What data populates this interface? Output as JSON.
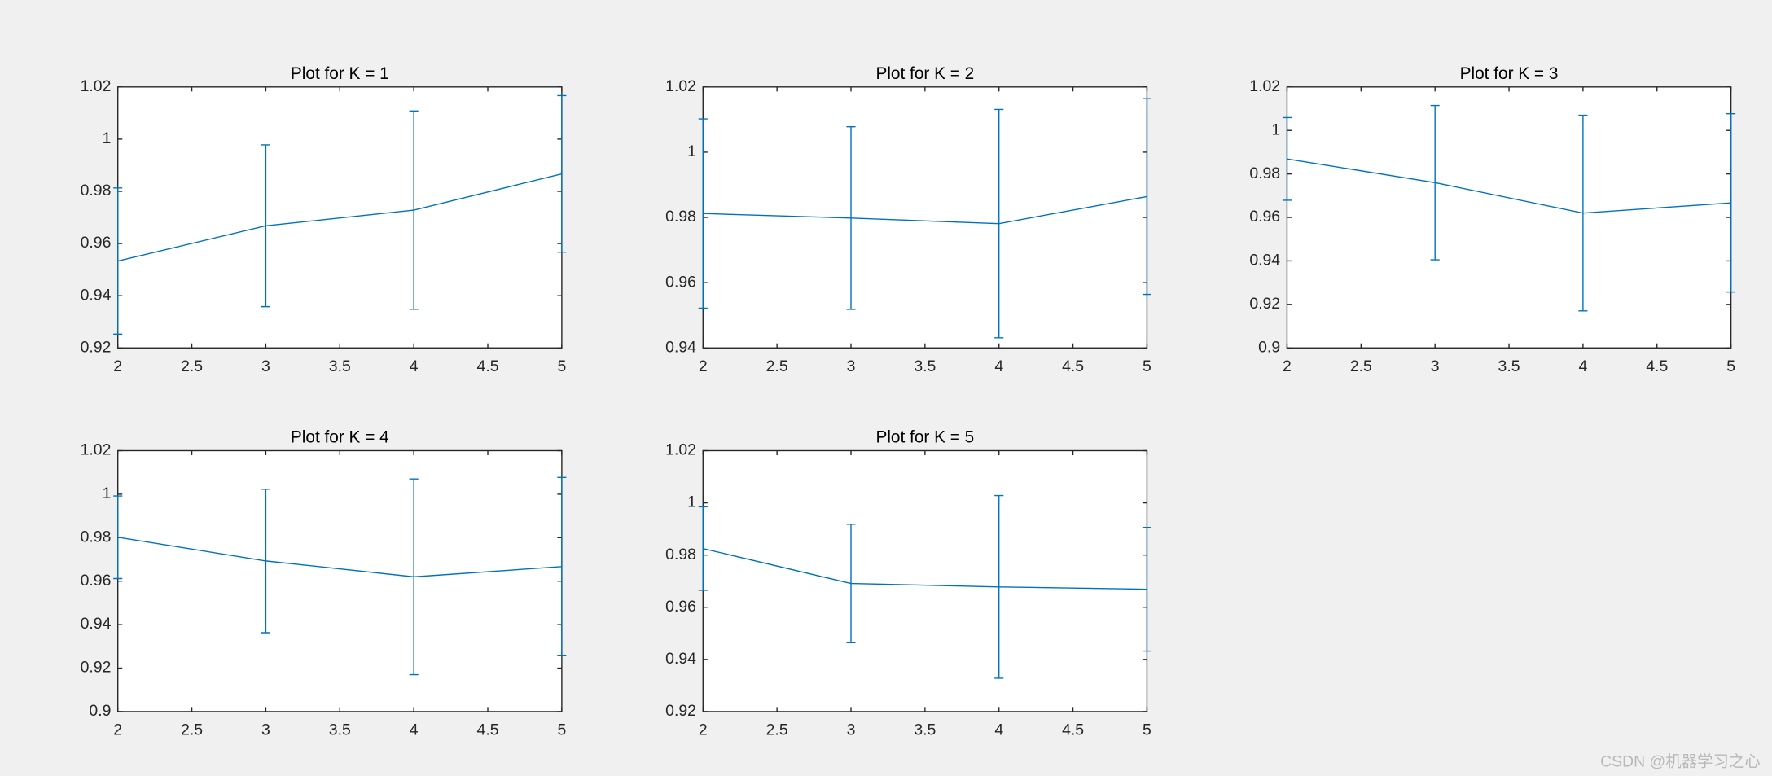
{
  "chart_data": [
    {
      "type": "errorbar",
      "title": "Plot for K = 1",
      "x": [
        2,
        3,
        4,
        5
      ],
      "values": [
        0.9533,
        0.9668,
        0.9728,
        0.9867
      ],
      "errors": [
        0.028,
        0.031,
        0.038,
        0.03
      ],
      "color": "#0072bd",
      "xlim": [
        2,
        5
      ],
      "xticks": [
        2,
        2.5,
        3,
        3.5,
        4,
        4.5,
        5
      ],
      "ylim": [
        0.92,
        1.02
      ],
      "yticks": [
        0.92,
        0.94,
        0.96,
        0.98,
        1,
        1.02
      ]
    },
    {
      "type": "errorbar",
      "title": "Plot for K = 2",
      "x": [
        2,
        3,
        4,
        5
      ],
      "values": [
        0.9812,
        0.9798,
        0.9781,
        0.9864
      ],
      "errors": [
        0.029,
        0.028,
        0.035,
        0.03
      ],
      "color": "#0072bd",
      "xlim": [
        2,
        5
      ],
      "xticks": [
        2,
        2.5,
        3,
        3.5,
        4,
        4.5,
        5
      ],
      "ylim": [
        0.94,
        1.02
      ],
      "yticks": [
        0.94,
        0.96,
        0.98,
        1,
        1.02
      ]
    },
    {
      "type": "errorbar",
      "title": "Plot for K = 3",
      "x": [
        2,
        3,
        4,
        5
      ],
      "values": [
        0.9869,
        0.976,
        0.962,
        0.9667
      ],
      "errors": [
        0.019,
        0.0355,
        0.045,
        0.041
      ],
      "color": "#0072bd",
      "xlim": [
        2,
        5
      ],
      "xticks": [
        2,
        2.5,
        3,
        3.5,
        4,
        4.5,
        5
      ],
      "ylim": [
        0.9,
        1.02
      ],
      "yticks": [
        0.9,
        0.92,
        0.94,
        0.96,
        0.98,
        1,
        1.02
      ]
    },
    {
      "type": "errorbar",
      "title": "Plot for K = 4",
      "x": [
        2,
        3,
        4,
        5
      ],
      "values": [
        0.9802,
        0.9693,
        0.962,
        0.9667
      ],
      "errors": [
        0.019,
        0.033,
        0.045,
        0.041
      ],
      "color": "#0072bd",
      "xlim": [
        2,
        5
      ],
      "xticks": [
        2,
        2.5,
        3,
        3.5,
        4,
        4.5,
        5
      ],
      "ylim": [
        0.9,
        1.02
      ],
      "yticks": [
        0.9,
        0.92,
        0.94,
        0.96,
        0.98,
        1,
        1.02
      ]
    },
    {
      "type": "errorbar",
      "title": "Plot for K = 5",
      "x": [
        2,
        3,
        4,
        5
      ],
      "values": [
        0.9825,
        0.9691,
        0.9678,
        0.9669
      ],
      "errors": [
        0.016,
        0.0227,
        0.035,
        0.0237
      ],
      "color": "#0072bd",
      "xlim": [
        2,
        5
      ],
      "xticks": [
        2,
        2.5,
        3,
        3.5,
        4,
        4.5,
        5
      ],
      "ylim": [
        0.92,
        1.02
      ],
      "yticks": [
        0.92,
        0.94,
        0.96,
        0.98,
        1,
        1.02
      ]
    }
  ],
  "watermark": "CSDN @机器学习之心"
}
